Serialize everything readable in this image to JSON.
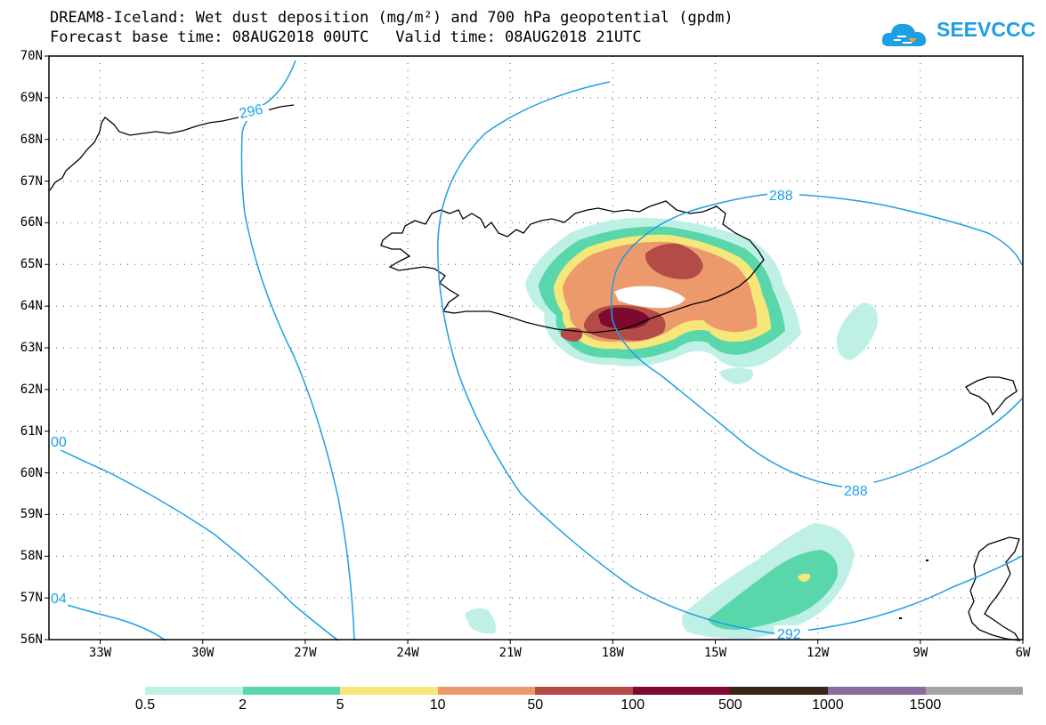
{
  "title": {
    "line1": "DREAM8-Iceland: Wet dust deposition (mg/m²) and 700 hPa geopotential (gpdm)",
    "line2_base": "Forecast base time: 08AUG2018 00UTC",
    "line2_valid": "Valid time: 08AUG2018 21UTC"
  },
  "logo": {
    "text": "SEEVCCC",
    "icon": "cloud-logo-icon",
    "color": "#1e9fe3"
  },
  "map": {
    "lon_range": [
      -34.5,
      -6
    ],
    "lat_range": [
      56,
      70
    ],
    "lat_labels": [
      "56N",
      "57N",
      "58N",
      "59N",
      "60N",
      "61N",
      "62N",
      "63N",
      "64N",
      "65N",
      "66N",
      "67N",
      "68N",
      "69N",
      "70N"
    ],
    "lon_labels": [
      "33W",
      "30W",
      "27W",
      "24W",
      "21W",
      "18W",
      "15W",
      "12W",
      "9W",
      "6W"
    ],
    "contour_color": "#1e9fe3",
    "contour_labels": [
      "296",
      "288",
      "288",
      "292",
      "00",
      "04"
    ]
  },
  "legend": {
    "colors": [
      "#bff0e6",
      "#5ad6ab",
      "#f5e77a",
      "#ec9a6c",
      "#b34b46",
      "#7d0a2e",
      "#3a2418",
      "#8a6d9c",
      "#a4a4a4"
    ],
    "labels": [
      "0.5",
      "2",
      "5",
      "10",
      "50",
      "100",
      "500",
      "1000",
      "1500"
    ]
  }
}
